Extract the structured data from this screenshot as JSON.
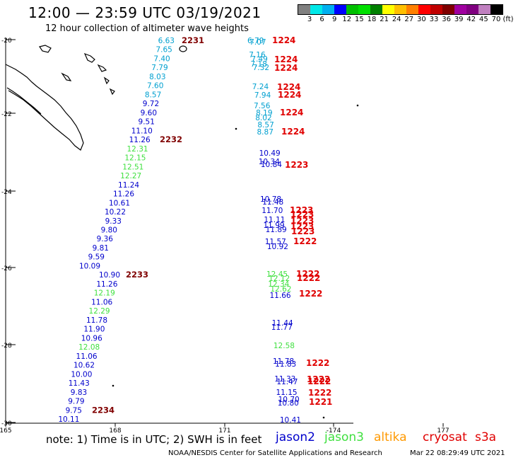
{
  "header": {
    "title": "12:00 — 23:59 UTC 03/19/2021",
    "subtitle": "12 hour collection of altimeter wave heights"
  },
  "legend": {
    "colors": [
      "#808080",
      "#00e8e8",
      "#00b0f0",
      "#0000ff",
      "#00c000",
      "#00e000",
      "#008000",
      "#ffff00",
      "#ffc000",
      "#ff8000",
      "#ff0000",
      "#c00000",
      "#800000",
      "#a000a0",
      "#800080",
      "#c080c0",
      "#000000"
    ],
    "labels": [
      "3",
      "6",
      "9",
      "12",
      "15",
      "18",
      "21",
      "24",
      "27",
      "30",
      "33",
      "36",
      "39",
      "42",
      "45",
      "70",
      "(ft)"
    ]
  },
  "axes": {
    "lat_labels": [
      "-20",
      "-22",
      "-24",
      "-26",
      "-28",
      "-30"
    ],
    "lon_labels": [
      "165",
      "168",
      "171",
      "-174",
      "177"
    ]
  },
  "colors": {
    "cyan": "#00a0d0",
    "blue": "#0000cc",
    "green": "#40e040",
    "red": "#e00000",
    "darkred": "#800000",
    "orange": "#ff9900",
    "coast": "#000000"
  },
  "tracks": {
    "west": [
      {
        "t": "6.63",
        "c": "cyan"
      },
      {
        "t": "7.65",
        "c": "cyan"
      },
      {
        "t": "7.40",
        "c": "cyan"
      },
      {
        "t": "7.79",
        "c": "cyan"
      },
      {
        "t": "8.03",
        "c": "cyan"
      },
      {
        "t": "7.60",
        "c": "cyan"
      },
      {
        "t": "8.57",
        "c": "cyan"
      },
      {
        "t": "9.72",
        "c": "blue"
      },
      {
        "t": "9.60",
        "c": "blue"
      },
      {
        "t": "9.51",
        "c": "blue"
      },
      {
        "t": "11.10",
        "c": "blue"
      },
      {
        "t": "11.26",
        "c": "blue"
      },
      {
        "t": "12.31",
        "c": "green"
      },
      {
        "t": "12.15",
        "c": "green"
      },
      {
        "t": "12.51",
        "c": "green"
      },
      {
        "t": "12.27",
        "c": "green"
      },
      {
        "t": "11.24",
        "c": "blue"
      },
      {
        "t": "11.26",
        "c": "blue"
      },
      {
        "t": "10.61",
        "c": "blue"
      },
      {
        "t": "10.22",
        "c": "blue"
      },
      {
        "t": "9.33",
        "c": "blue"
      },
      {
        "t": "9.80",
        "c": "blue"
      },
      {
        "t": "9.36",
        "c": "blue"
      },
      {
        "t": "9.81",
        "c": "blue"
      },
      {
        "t": "9.59",
        "c": "blue"
      },
      {
        "t": "10.09",
        "c": "blue"
      },
      {
        "t": "10.90",
        "c": "blue"
      },
      {
        "t": "11.26",
        "c": "blue"
      },
      {
        "t": "12.19",
        "c": "green"
      },
      {
        "t": "11.06",
        "c": "blue"
      },
      {
        "t": "12.29",
        "c": "green"
      },
      {
        "t": "11.78",
        "c": "blue"
      },
      {
        "t": "11.90",
        "c": "blue"
      },
      {
        "t": "10.96",
        "c": "blue"
      },
      {
        "t": "12.08",
        "c": "green"
      },
      {
        "t": "11.06",
        "c": "blue"
      },
      {
        "t": "10.62",
        "c": "blue"
      },
      {
        "t": "10.00",
        "c": "blue"
      },
      {
        "t": "11.43",
        "c": "blue"
      },
      {
        "t": "9.83",
        "c": "blue"
      },
      {
        "t": "9.79",
        "c": "blue"
      },
      {
        "t": "9.75",
        "c": "blue"
      },
      {
        "t": "10.11",
        "c": "blue"
      }
    ],
    "west_times": [
      {
        "t": "2231",
        "c": "darkred"
      },
      {
        "t": "2232",
        "c": "darkred"
      },
      {
        "t": "2233",
        "c": "darkred"
      },
      {
        "t": "2234",
        "c": "darkred"
      }
    ],
    "east": [
      {
        "t": "6.79",
        "c": "cyan"
      },
      {
        "t": "7.07",
        "c": "cyan"
      },
      {
        "t": "7.16",
        "c": "cyan"
      },
      {
        "t": "7.49",
        "c": "cyan"
      },
      {
        "t": "7.18",
        "c": "cyan"
      },
      {
        "t": "7.32",
        "c": "cyan"
      },
      {
        "t": "7.24",
        "c": "cyan"
      },
      {
        "t": "7.94",
        "c": "cyan"
      },
      {
        "t": "7.56",
        "c": "cyan"
      },
      {
        "t": "8.19",
        "c": "cyan"
      },
      {
        "t": "8.02",
        "c": "cyan"
      },
      {
        "t": "8.57",
        "c": "cyan"
      },
      {
        "t": "8.87",
        "c": "cyan"
      },
      {
        "t": "10.49",
        "c": "blue"
      },
      {
        "t": "10.34",
        "c": "blue"
      },
      {
        "t": "10.84",
        "c": "blue"
      },
      {
        "t": "10.78",
        "c": "blue"
      },
      {
        "t": "11.48",
        "c": "blue"
      },
      {
        "t": "11.70",
        "c": "blue"
      },
      {
        "t": "11.11",
        "c": "blue"
      },
      {
        "t": "11.99",
        "c": "blue"
      },
      {
        "t": "11.89",
        "c": "blue"
      },
      {
        "t": "11.57",
        "c": "blue"
      },
      {
        "t": "10.92",
        "c": "blue"
      },
      {
        "t": "12.45",
        "c": "green"
      },
      {
        "t": "12.12",
        "c": "green"
      },
      {
        "t": "12.34",
        "c": "green"
      },
      {
        "t": "12.62",
        "c": "green"
      },
      {
        "t": "11.66",
        "c": "blue"
      },
      {
        "t": "11.44",
        "c": "blue"
      },
      {
        "t": "11.77",
        "c": "blue"
      },
      {
        "t": "12.58",
        "c": "green"
      },
      {
        "t": "11.78",
        "c": "blue"
      },
      {
        "t": "11.83",
        "c": "blue"
      },
      {
        "t": "11.33",
        "c": "blue"
      },
      {
        "t": "11.47",
        "c": "blue"
      },
      {
        "t": "11.15",
        "c": "blue"
      },
      {
        "t": "10.70",
        "c": "blue"
      },
      {
        "t": "10.80",
        "c": "blue"
      },
      {
        "t": "10.41",
        "c": "blue"
      }
    ],
    "east_times": [
      {
        "t": "1224",
        "c": "red"
      },
      {
        "t": "1224",
        "c": "red"
      },
      {
        "t": "1224",
        "c": "red"
      },
      {
        "t": "1224",
        "c": "red"
      },
      {
        "t": "1224",
        "c": "red"
      },
      {
        "t": "1224",
        "c": "red"
      },
      {
        "t": "1224",
        "c": "red"
      },
      {
        "t": "1223",
        "c": "red"
      },
      {
        "t": "1223",
        "c": "red"
      },
      {
        "t": "1223",
        "c": "red"
      },
      {
        "t": "1223",
        "c": "red"
      },
      {
        "t": "1223",
        "c": "red"
      },
      {
        "t": "1223",
        "c": "red"
      },
      {
        "t": "1222",
        "c": "red"
      },
      {
        "t": "1222",
        "c": "red"
      },
      {
        "t": "1222",
        "c": "red"
      },
      {
        "t": "1222",
        "c": "red"
      },
      {
        "t": "1222",
        "c": "red"
      },
      {
        "t": "1222",
        "c": "red"
      },
      {
        "t": "1222",
        "c": "red"
      },
      {
        "t": "1222",
        "c": "red"
      },
      {
        "t": "1221",
        "c": "red"
      }
    ]
  },
  "footer": {
    "note": "note:  1) Time is in UTC;  2) SWH is in feet",
    "satellites": [
      {
        "name": "jason2",
        "color": "blue"
      },
      {
        "name": "jason3",
        "color": "green"
      },
      {
        "name": "altika",
        "color": "orange"
      },
      {
        "name": "cryosat",
        "color": "red"
      },
      {
        "name": "s3a",
        "color": "red"
      }
    ],
    "credit": "NOAA/NESDIS Center for Satellite Applications and Research",
    "timestamp": "Mar 22 08:29:49 UTC 2021"
  }
}
